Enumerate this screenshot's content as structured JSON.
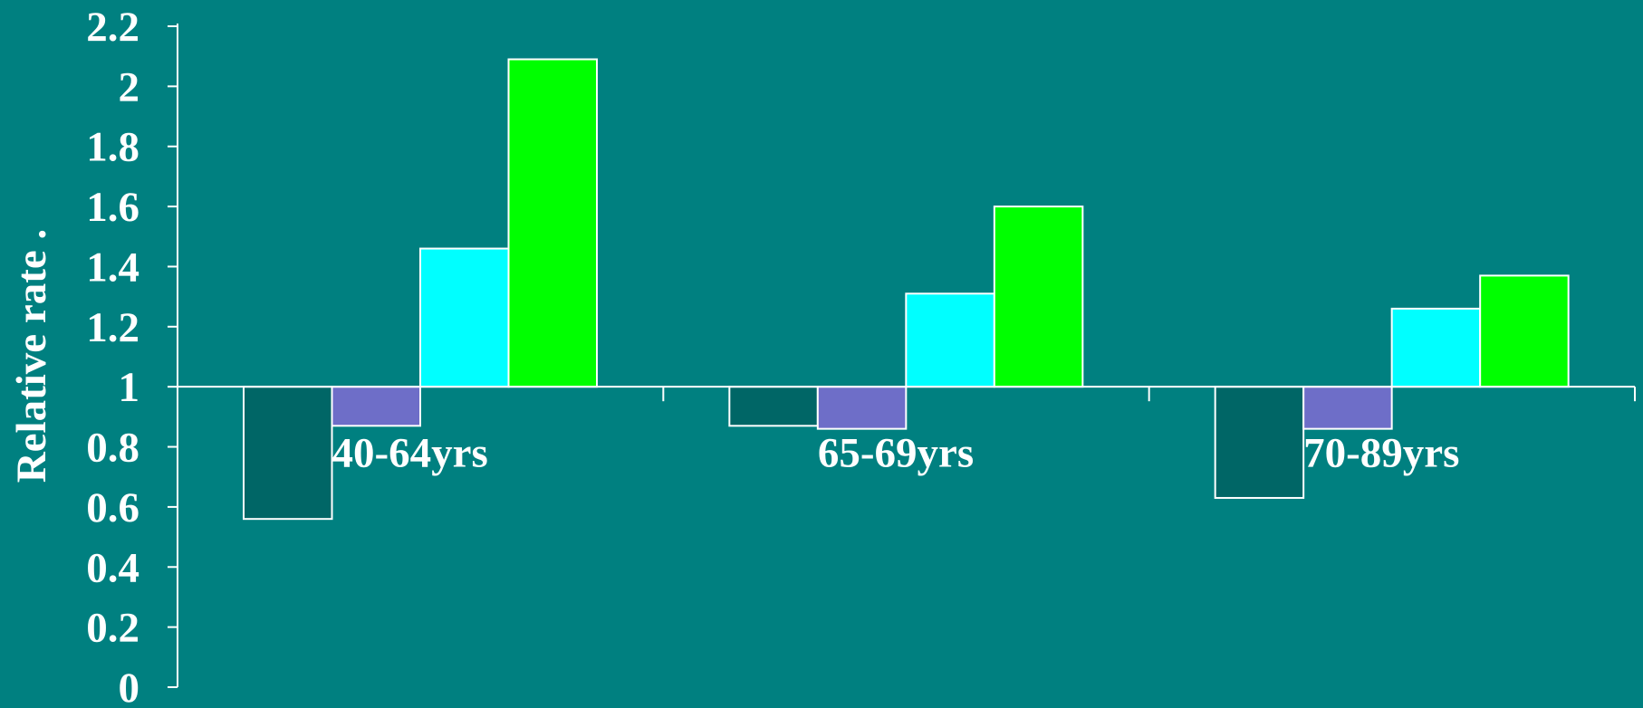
{
  "chart_data": {
    "type": "bar",
    "title": "",
    "xlabel": "",
    "ylabel": "Relative rate .",
    "ylim": [
      0,
      2.2
    ],
    "baseline": 1,
    "yticks": [
      "0",
      "0.2",
      "0.4",
      "0.6",
      "0.8",
      "1",
      "1.2",
      "1.4",
      "1.6",
      "1.8",
      "2",
      "2.2"
    ],
    "categories": [
      "40-64yrs",
      "65-69yrs",
      "70-89yrs"
    ],
    "series": [
      {
        "color": "#006666",
        "values": [
          0.56,
          0.87,
          0.63
        ]
      },
      {
        "color": "#6E6EC8",
        "values": [
          0.87,
          0.86,
          0.86
        ]
      },
      {
        "color": "#00FFFF",
        "values": [
          1.46,
          1.31,
          1.26
        ]
      },
      {
        "color": "#00FF00",
        "values": [
          2.09,
          1.6,
          1.37
        ]
      }
    ],
    "background_color": "#008080",
    "axis_color": "#FFFFFF",
    "grid": false,
    "legend": "none"
  }
}
